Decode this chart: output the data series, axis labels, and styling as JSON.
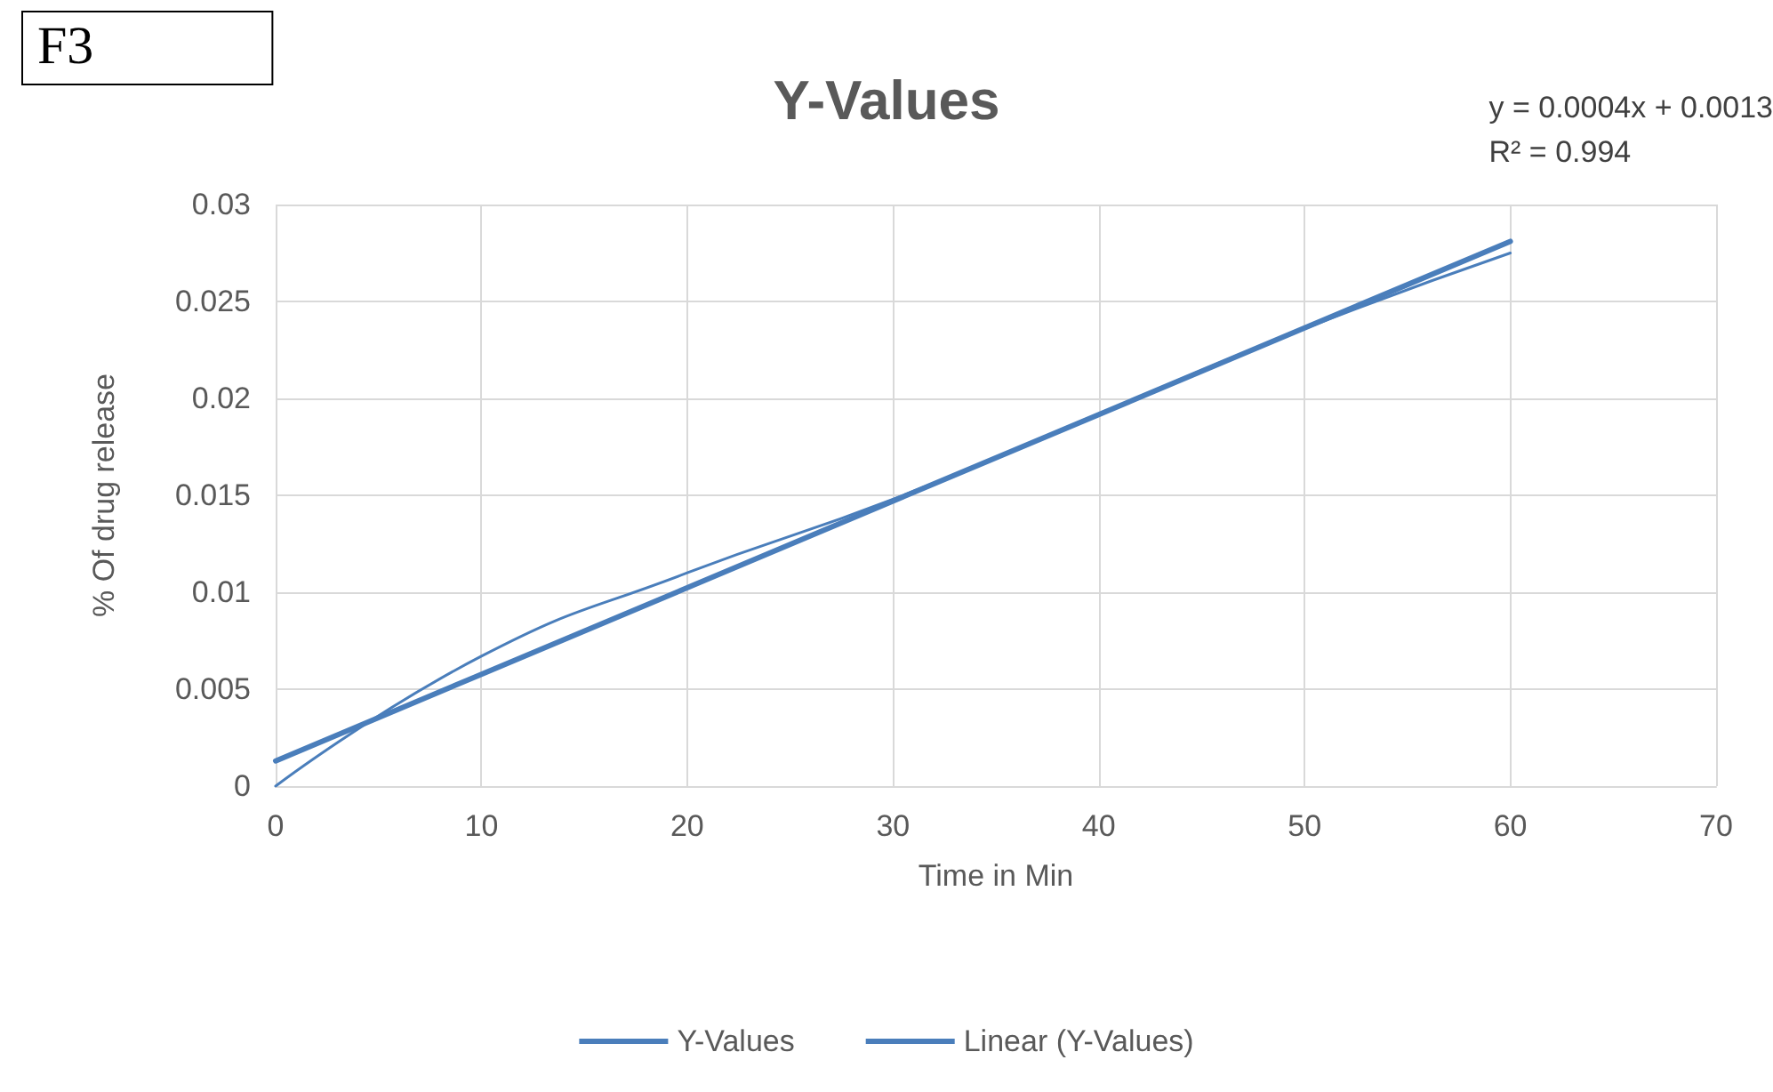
{
  "chart_data": {
    "type": "line",
    "title": "Y-Values",
    "xlabel": "Time in Min",
    "ylabel": "% Of drug release",
    "annotations": [
      "F3",
      "y = 0.0004x + 0.0013",
      "R² = 0.994"
    ],
    "x": [
      0,
      10,
      20,
      30,
      40,
      50,
      60
    ],
    "series": [
      {
        "name": "Y-Values",
        "color": "#4a7ebb",
        "values": [
          0,
          0.0067,
          0.011,
          0.0148,
          0.0192,
          0.0236,
          0.0275
        ],
        "marker": "none"
      },
      {
        "name": "Linear (Y-Values)",
        "color": "#4a7ebb",
        "x": [
          0,
          60
        ],
        "values": [
          0.0013,
          0.0281
        ],
        "marker": "none"
      }
    ],
    "xlim": [
      0,
      70
    ],
    "xticks": [
      0,
      10,
      20,
      30,
      40,
      50,
      60,
      70
    ],
    "ylim": [
      0,
      0.03
    ],
    "yticks": [
      0,
      0.005,
      0.01,
      0.015,
      0.02,
      0.025,
      0.03
    ],
    "grid": true,
    "legend": "bottom"
  }
}
